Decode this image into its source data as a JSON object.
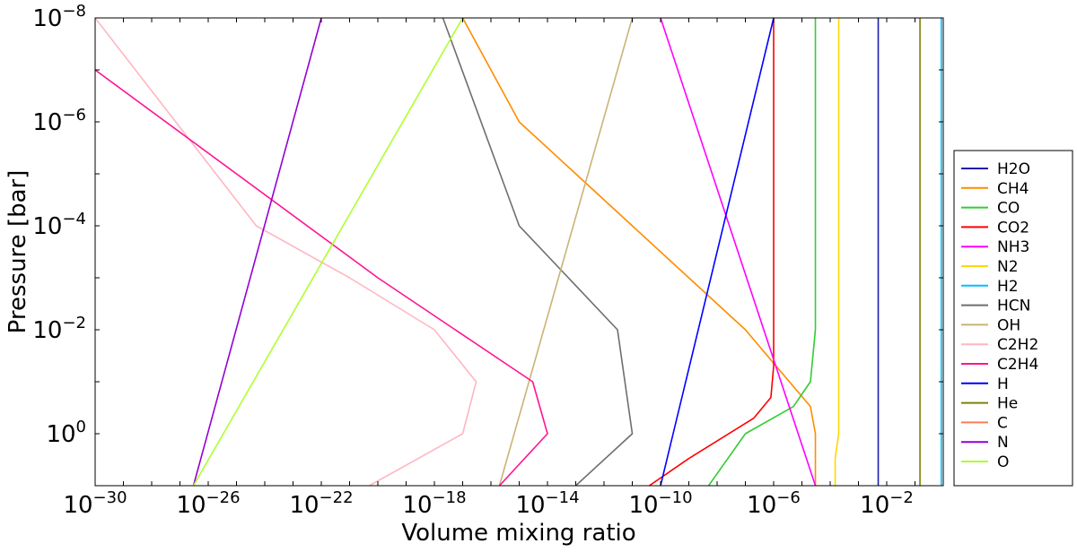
{
  "chart_data": {
    "type": "line",
    "title": "",
    "xlabel": "Volume mixing ratio",
    "ylabel": "Pressure [bar]",
    "xscale": "log",
    "yscale": "log",
    "xlim": [
      1e-30,
      1
    ],
    "ylim": [
      10,
      1e-08
    ],
    "y_inverted": true,
    "grid": false,
    "legend_position": "right",
    "x_ticks": [
      {
        "base": "10",
        "exp": "−30",
        "value": 1e-30
      },
      {
        "base": "10",
        "exp": "−26",
        "value": 1e-26
      },
      {
        "base": "10",
        "exp": "−22",
        "value": 1e-22
      },
      {
        "base": "10",
        "exp": "−18",
        "value": 1e-18
      },
      {
        "base": "10",
        "exp": "−14",
        "value": 1e-14
      },
      {
        "base": "10",
        "exp": "−10",
        "value": 1e-10
      },
      {
        "base": "10",
        "exp": "−6",
        "value": 1e-06
      },
      {
        "base": "10",
        "exp": "−2",
        "value": 0.01
      }
    ],
    "y_ticks": [
      {
        "base": "10",
        "exp": "−8",
        "value": 1e-08
      },
      {
        "base": "10",
        "exp": "−6",
        "value": 1e-06
      },
      {
        "base": "10",
        "exp": "−4",
        "value": 0.0001
      },
      {
        "base": "10",
        "exp": "−2",
        "value": 0.01
      },
      {
        "base": "10",
        "exp": "0",
        "value": 1
      }
    ],
    "series": [
      {
        "name": "H2O",
        "color": "#1c1cab",
        "x": [
          0.005,
          0.005
        ],
        "y": [
          10,
          1e-08
        ]
      },
      {
        "name": "CH4",
        "color": "#ff8c00",
        "x": [
          3e-05,
          3e-05,
          2e-05,
          1e-07,
          1e-09,
          1e-11,
          1e-13,
          1e-15,
          1e-17
        ],
        "y": [
          10,
          1,
          0.3,
          0.01,
          0.001,
          0.0001,
          1e-05,
          1e-06,
          1e-08
        ]
      },
      {
        "name": "CO",
        "color": "#32cd32",
        "x": [
          5e-09,
          1e-07,
          5e-06,
          2e-05,
          3e-05,
          3e-05,
          3e-05
        ],
        "y": [
          10,
          1,
          0.3,
          0.1,
          0.01,
          0.0001,
          1e-08
        ]
      },
      {
        "name": "CO2",
        "color": "#ff0000",
        "x": [
          4e-11,
          1e-09,
          2e-07,
          8e-07,
          1e-06,
          1e-06,
          1e-06,
          1e-06
        ],
        "y": [
          10,
          3,
          0.5,
          0.2,
          0.05,
          0.01,
          0.0001,
          1e-08
        ]
      },
      {
        "name": "NH3",
        "color": "#ff00ff",
        "x": [
          3e-05,
          1e-10
        ],
        "y": [
          10,
          1e-08
        ]
      },
      {
        "name": "N2",
        "color": "#ffd700",
        "x": [
          0.00015,
          0.00015,
          0.0002,
          0.0002
        ],
        "y": [
          10,
          3,
          1,
          1e-08
        ]
      },
      {
        "name": "H2",
        "color": "#00bfff",
        "x": [
          0.85,
          0.85
        ],
        "y": [
          10,
          1e-08
        ]
      },
      {
        "name": "HCN",
        "color": "#6e6e6e",
        "x": [
          1e-13,
          1e-11,
          3e-12,
          1e-15,
          2e-18
        ],
        "y": [
          10,
          1,
          0.01,
          0.0001,
          1e-08
        ]
      },
      {
        "name": "OH",
        "color": "#c8b478",
        "x": [
          2e-16,
          1e-11
        ],
        "y": [
          10,
          1e-08
        ]
      },
      {
        "name": "C2H2",
        "color": "#ffb6c1",
        "x": [
          5e-21,
          1e-17,
          3e-17,
          1e-18,
          1e-21,
          5e-25,
          1e-30
        ],
        "y": [
          10,
          1,
          0.1,
          0.01,
          0.001,
          0.0001,
          1e-08
        ]
      },
      {
        "name": "C2H4",
        "color": "#ff1493",
        "x": [
          2e-16,
          1e-14,
          3e-15,
          1e-20,
          1e-30
        ],
        "y": [
          10,
          1,
          0.1,
          0.001,
          1e-07
        ]
      },
      {
        "name": "H",
        "color": "#0000ff",
        "x": [
          1e-10,
          1e-06
        ],
        "y": [
          10,
          1e-08
        ]
      },
      {
        "name": "He",
        "color": "#808000",
        "x": [
          0.15,
          0.15
        ],
        "y": [
          10,
          1e-08
        ]
      },
      {
        "name": "C",
        "color": "#ff7f50",
        "x": [],
        "y": []
      },
      {
        "name": "N",
        "color": "#9400d3",
        "x": [
          3e-27,
          1e-22
        ],
        "y": [
          10,
          1e-08
        ]
      },
      {
        "name": "O",
        "color": "#adff2f",
        "x": [
          3e-27,
          1e-17
        ],
        "y": [
          10,
          1e-08
        ]
      }
    ]
  }
}
